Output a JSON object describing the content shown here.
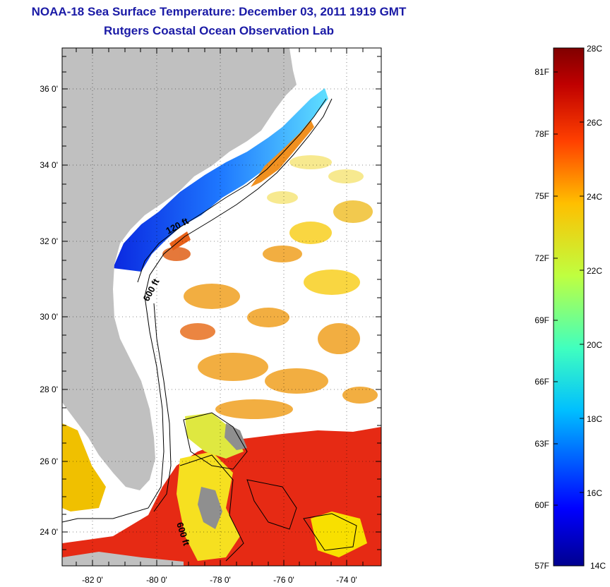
{
  "title_line1": "NOAA-18 Sea Surface Temperature:  December 03, 2011 1919 GMT",
  "title_line2": "Rutgers Coastal Ocean Observation Lab",
  "lat_ticks": [
    "36 0'",
    "34 0'",
    "32 0'",
    "30 0'",
    "28 0'",
    "26 0'",
    "24 0'"
  ],
  "lon_ticks": [
    "-82 0'",
    "-80 0'",
    "-78 0'",
    "-76 0'",
    "-74 0'"
  ],
  "contour_labels": [
    "120 ft",
    "600 ft",
    "600 ft"
  ],
  "colorbar": {
    "fahrenheit_labels": [
      "81F",
      "78F",
      "75F",
      "72F",
      "69F",
      "66F",
      "63F",
      "60F",
      "57F"
    ],
    "celsius_labels": [
      "28C",
      "26C",
      "24C",
      "22C",
      "20C",
      "18C",
      "16C",
      "14C"
    ],
    "min_c": 14,
    "max_c": 28,
    "colors": [
      "#00008f",
      "#0000ff",
      "#00bfff",
      "#40ffbf",
      "#bfff40",
      "#ffbf00",
      "#ff4000",
      "#bf0000",
      "#800000"
    ]
  },
  "colors": {
    "land": "#c0c0c0",
    "title": "#1a1aa6",
    "cold_water": "#1446ff",
    "warm_water": "#e62814"
  }
}
